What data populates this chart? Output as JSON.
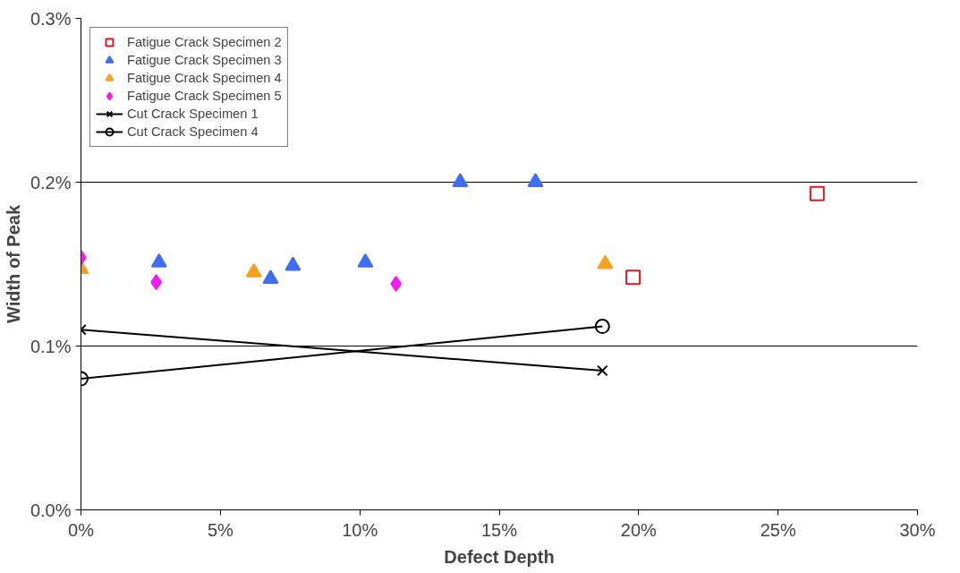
{
  "chart_data": {
    "type": "scatter",
    "xlabel": "Defect Depth",
    "ylabel": "Width of Peak",
    "xlim": [
      0,
      30
    ],
    "ylim": [
      0,
      0.3
    ],
    "xticks": [
      {
        "value": 0,
        "label": "0%"
      },
      {
        "value": 5,
        "label": "5%"
      },
      {
        "value": 10,
        "label": "10%"
      },
      {
        "value": 15,
        "label": "15%"
      },
      {
        "value": 20,
        "label": "20%"
      },
      {
        "value": 25,
        "label": "25%"
      },
      {
        "value": 30,
        "label": "30%"
      }
    ],
    "yticks": [
      {
        "value": 0,
        "label": "0.0%"
      },
      {
        "value": 0.1,
        "label": "0.1%"
      },
      {
        "value": 0.2,
        "label": "0.2%"
      },
      {
        "value": 0.3,
        "label": "0.3%"
      }
    ],
    "grid": "y",
    "legend": "top left",
    "series": [
      {
        "name": "Fatigue Crack Specimen 2",
        "marker": "square",
        "color": "#e8141c",
        "x": [
          19.8,
          26.4
        ],
        "values": [
          0.142,
          0.193
        ]
      },
      {
        "name": "Fatigue Crack Specimen 3",
        "marker": "triangle",
        "color": "#3f6ff0",
        "x": [
          2.8,
          6.8,
          7.6,
          10.2,
          13.6,
          16.3
        ],
        "values": [
          0.151,
          0.141,
          0.149,
          0.151,
          0.2,
          0.2
        ]
      },
      {
        "name": "Fatigue Crack Specimen 4",
        "marker": "triangle",
        "color": "#f5a11c",
        "x": [
          0,
          6.2,
          18.8
        ],
        "values": [
          0.147,
          0.145,
          0.15
        ]
      },
      {
        "name": "Fatigue Crack Specimen 5",
        "marker": "diamond",
        "color": "#f21cf0",
        "x": [
          0,
          2.7,
          11.3
        ],
        "values": [
          0.154,
          0.139,
          0.138
        ]
      },
      {
        "name": "Cut Crack Specimen 1",
        "type": "line",
        "marker": "cross",
        "color": "#000000",
        "x": [
          0,
          18.7
        ],
        "values": [
          0.11,
          0.085
        ]
      },
      {
        "name": "Cut Crack Specimen 4",
        "type": "line",
        "marker": "circle",
        "color": "#000000",
        "x": [
          0,
          18.7
        ],
        "values": [
          0.08,
          0.112
        ]
      }
    ]
  }
}
